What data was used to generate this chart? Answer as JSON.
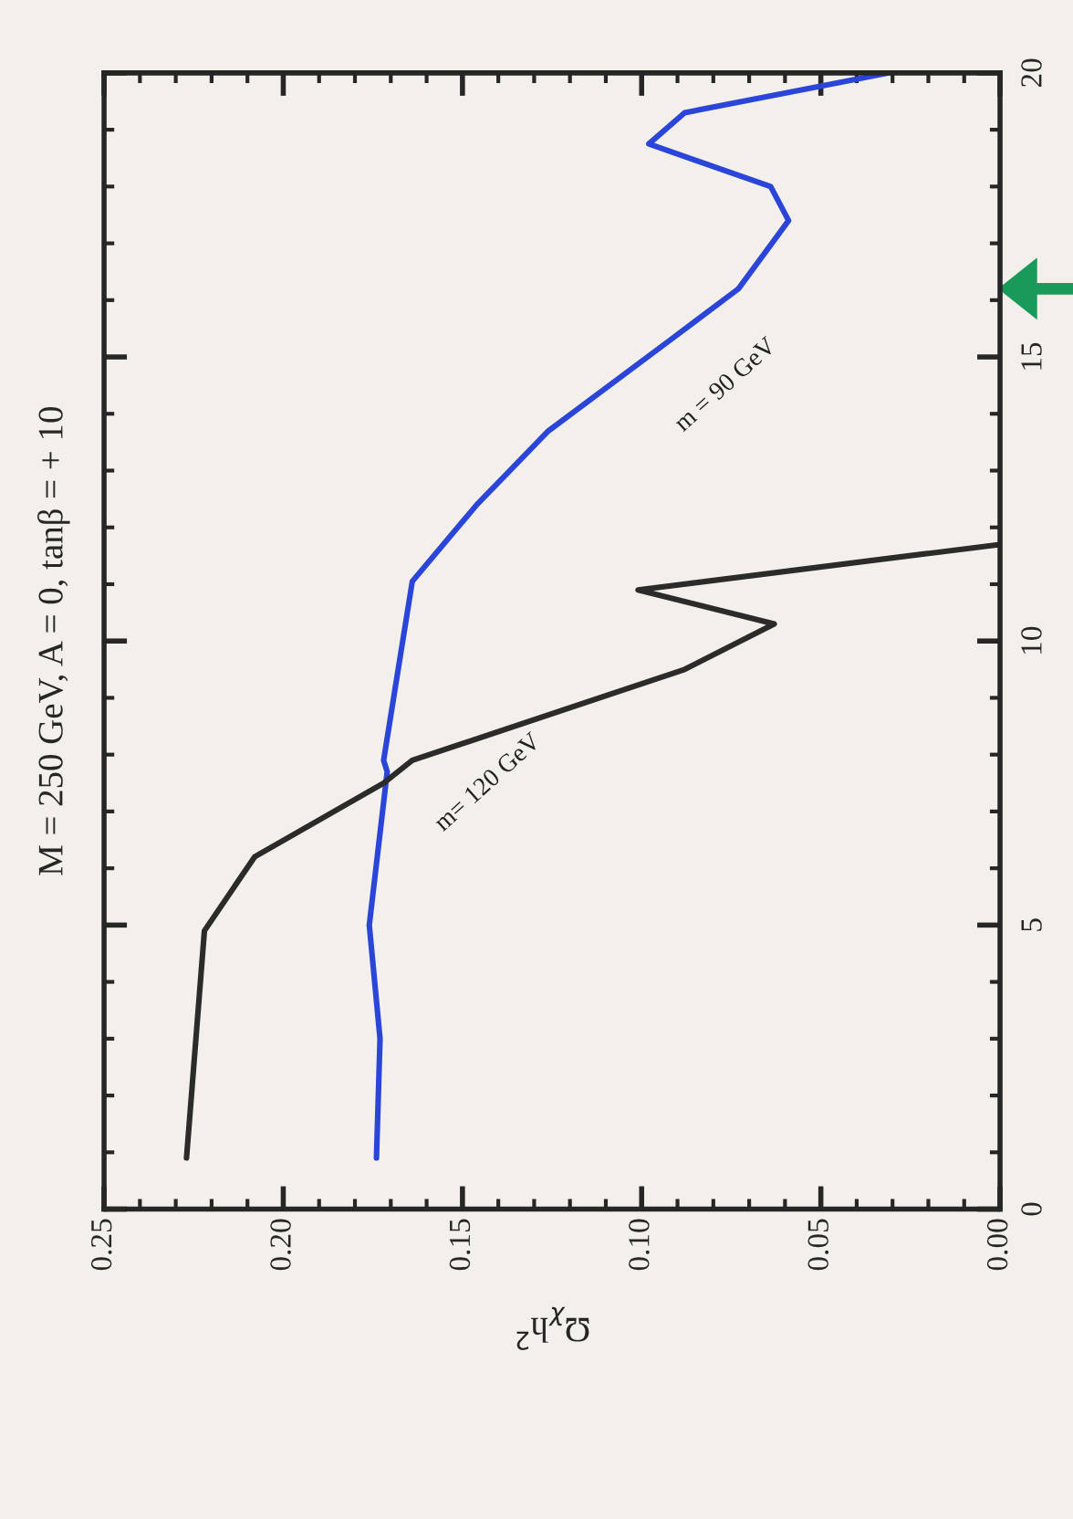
{
  "chart_data": {
    "type": "line",
    "title": "M = 250 GeV, A = 0, tanβ = + 10",
    "xlabel": "Ω$_{χ}$h$^{2}$",
    "xlim": [
      0.25,
      0.0
    ],
    "xticks": [
      {
        "value": 0.25,
        "label": "0.25"
      },
      {
        "value": 0.2,
        "label": "0.20"
      },
      {
        "value": 0.15,
        "label": "0.15"
      },
      {
        "value": 0.1,
        "label": "0.10"
      },
      {
        "value": 0.05,
        "label": "0.05"
      },
      {
        "value": 0.0,
        "label": "0.00"
      }
    ],
    "ylim": [
      0,
      20
    ],
    "yticks": [
      0,
      5,
      10,
      15,
      20
    ],
    "grid": false,
    "legend": false,
    "series": [
      {
        "name": "m = 90 GeV",
        "color": "#2a45d8",
        "x": [
          0.174,
          0.173,
          0.176,
          0.171,
          0.172,
          0.164,
          0.146,
          0.126,
          0.092,
          0.073,
          0.059,
          0.064,
          0.098,
          0.088,
          0.031
        ],
        "values": [
          0.9,
          3,
          5,
          7.7,
          7.9,
          11.05,
          12.4,
          13.7,
          15.3,
          16.2,
          17.4,
          18.0,
          18.75,
          19.3,
          20
        ]
      },
      {
        "name": "m= 120 GeV",
        "color": "#2b2b2b",
        "x": [
          0.227,
          0.222,
          0.208,
          0.172,
          0.164,
          0.088,
          0.063,
          0.101,
          0.0
        ],
        "values": [
          0.9,
          4.9,
          6.2,
          7.5,
          7.9,
          9.5,
          10.3,
          10.9,
          11.7
        ]
      }
    ]
  }
}
